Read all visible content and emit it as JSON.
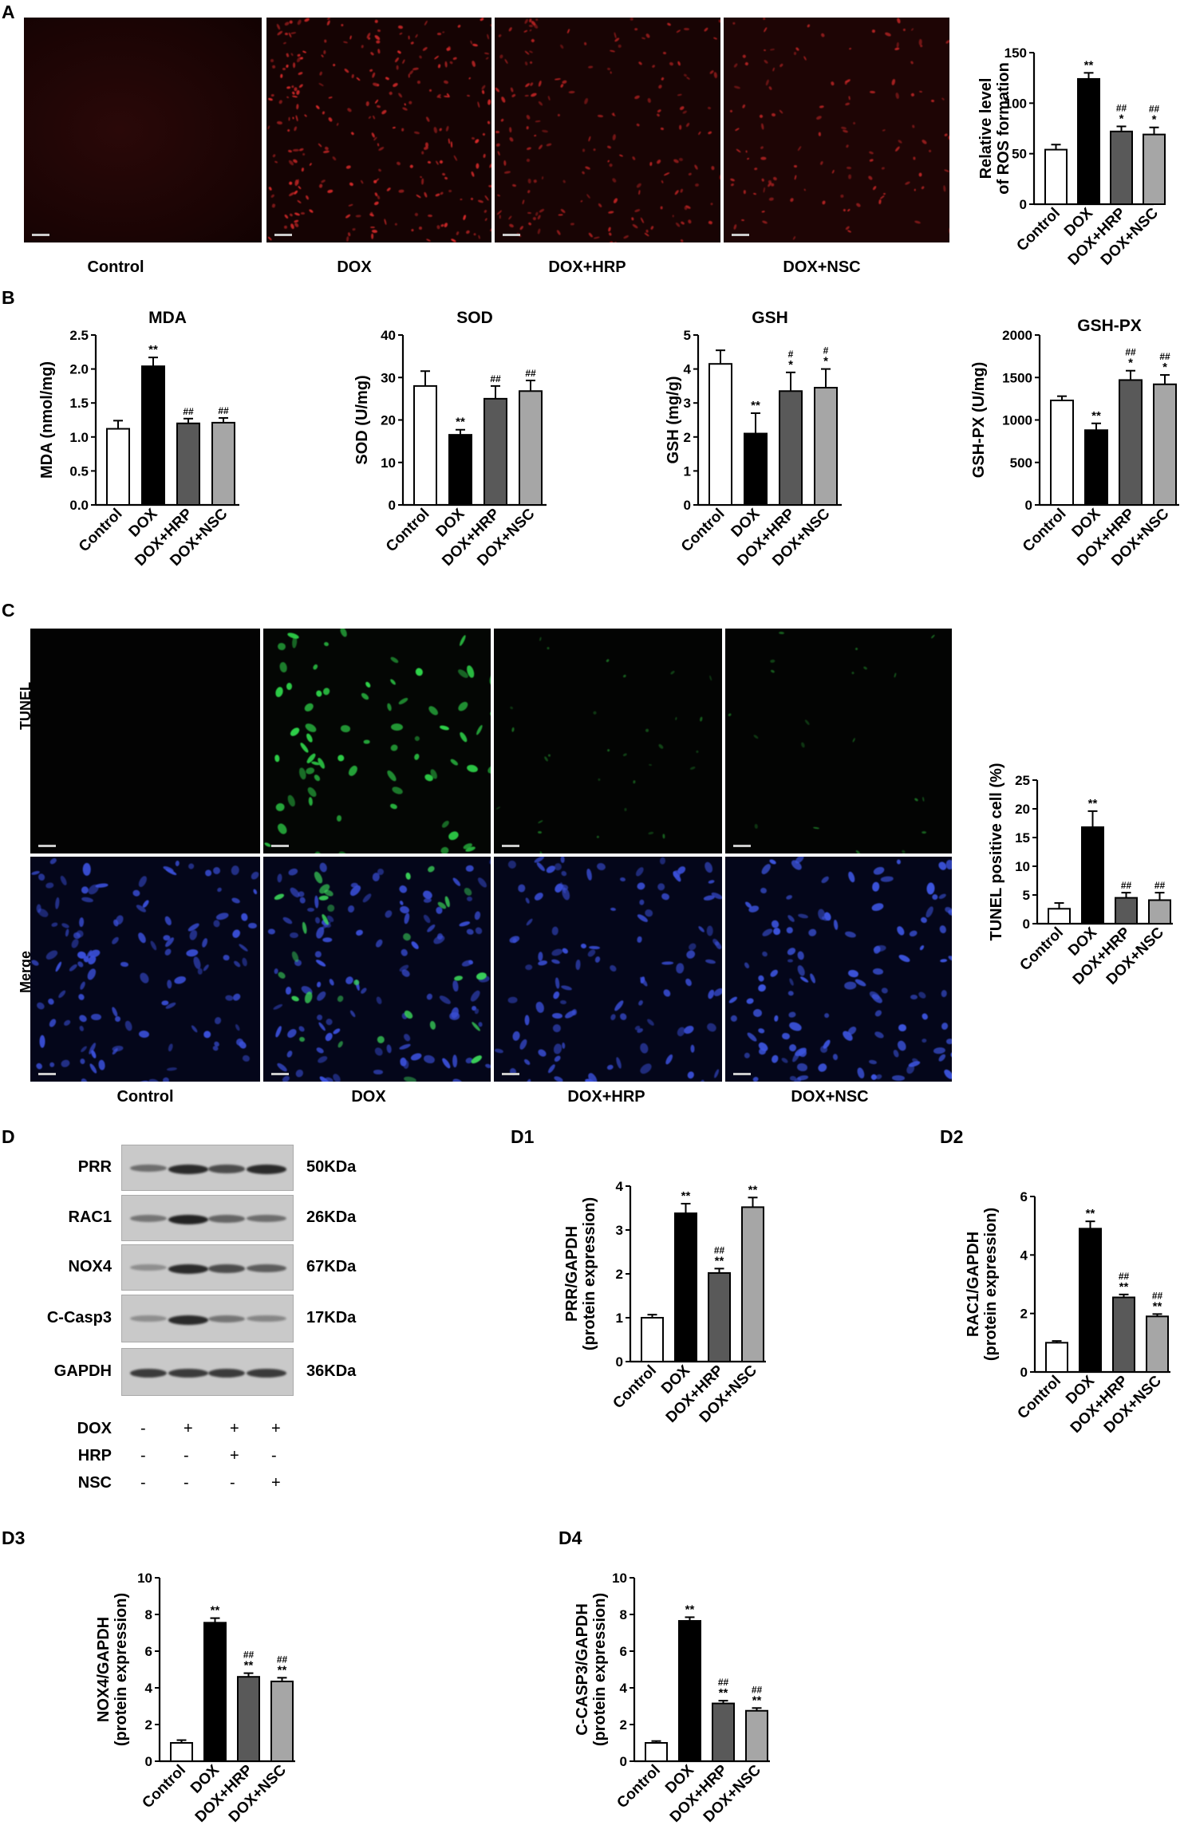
{
  "panels": {
    "A": {
      "label": "A",
      "images": [
        "Control",
        "DOX",
        "DOX+HRP",
        "DOX+NSC"
      ],
      "chart": {
        "ylabel": [
          "Relative level",
          "of ROS formation"
        ]
      }
    },
    "B": {
      "label": "B"
    },
    "C": {
      "label": "C",
      "rows": [
        "TUNEL",
        "Merge"
      ],
      "images": [
        "Control",
        "DOX",
        "DOX+HRP",
        "DOX+NSC"
      ],
      "chart": {
        "ylabel": "TUNEL positive cell (%)"
      }
    },
    "D": {
      "label": "D",
      "proteins": [
        {
          "name": "PRR",
          "size": "50KDa"
        },
        {
          "name": "RAC1",
          "size": "26KDa"
        },
        {
          "name": "NOX4",
          "size": "67KDa"
        },
        {
          "name": "C-Casp3",
          "size": "17KDa"
        },
        {
          "name": "GAPDH",
          "size": "36KDa"
        }
      ],
      "treatments": [
        {
          "name": "DOX",
          "signs": [
            "-",
            "+",
            "+",
            "+"
          ]
        },
        {
          "name": "HRP",
          "signs": [
            "-",
            "-",
            "+",
            "-"
          ]
        },
        {
          "name": "NSC",
          "signs": [
            "-",
            "-",
            "-",
            "+"
          ]
        }
      ]
    },
    "D1": {
      "label": "D1"
    },
    "D2": {
      "label": "D2"
    },
    "D3": {
      "label": "D3"
    },
    "D4": {
      "label": "D4"
    }
  },
  "colors": {
    "control": "#ffffff",
    "dox": "#000000",
    "hrp": "#595959",
    "nsc": "#a6a6a6"
  },
  "chart_data": [
    {
      "id": "A",
      "type": "bar",
      "categories": [
        "Control",
        "DOX",
        "DOX+HRP",
        "DOX+NSC"
      ],
      "values": [
        54,
        124,
        72,
        69
      ],
      "errors": [
        5,
        6,
        5,
        7
      ],
      "annotations": [
        "",
        "**",
        "*|##",
        "*|##"
      ],
      "ylabel": "Relative level of ROS formation",
      "ylim": [
        0,
        150
      ],
      "yticks": [
        0,
        50,
        100,
        150
      ],
      "title": ""
    },
    {
      "id": "MDA",
      "type": "bar",
      "categories": [
        "Control",
        "DOX",
        "DOX+HRP",
        "DOX+NSC"
      ],
      "values": [
        1.12,
        2.04,
        1.2,
        1.21
      ],
      "errors": [
        0.12,
        0.13,
        0.07,
        0.07
      ],
      "annotations": [
        "",
        "**",
        "##",
        "##"
      ],
      "title": "MDA",
      "ylabel": "MDA (nmol/mg)",
      "ylim": [
        0,
        2.5
      ],
      "yticks": [
        0.0,
        0.5,
        1.0,
        1.5,
        2.0,
        2.5
      ]
    },
    {
      "id": "SOD",
      "type": "bar",
      "categories": [
        "Control",
        "DOX",
        "DOX+HRP",
        "DOX+NSC"
      ],
      "values": [
        28,
        16.5,
        25,
        26.8
      ],
      "errors": [
        3.5,
        1.2,
        3.0,
        2.5
      ],
      "annotations": [
        "",
        "**",
        "##",
        "##"
      ],
      "title": "SOD",
      "ylabel": "SOD (U/mg)",
      "ylim": [
        0,
        40
      ],
      "yticks": [
        0,
        10,
        20,
        30,
        40
      ]
    },
    {
      "id": "GSH",
      "type": "bar",
      "categories": [
        "Control",
        "DOX",
        "DOX+HRP",
        "DOX+NSC"
      ],
      "values": [
        4.15,
        2.1,
        3.35,
        3.45
      ],
      "errors": [
        0.4,
        0.6,
        0.55,
        0.55
      ],
      "annotations": [
        "",
        "**",
        "*|#",
        "*|#"
      ],
      "title": "GSH",
      "ylabel": "GSH (mg/g)",
      "ylim": [
        0,
        5
      ],
      "yticks": [
        0,
        1,
        2,
        3,
        4,
        5
      ]
    },
    {
      "id": "GSH-PX",
      "type": "bar",
      "categories": [
        "Control",
        "DOX",
        "DOX+HRP",
        "DOX+NSC"
      ],
      "values": [
        1230,
        880,
        1470,
        1420
      ],
      "errors": [
        50,
        80,
        110,
        110
      ],
      "annotations": [
        "",
        "**",
        "*|##",
        "*|##"
      ],
      "title": "GSH-PX",
      "ylabel": "GSH-PX (U/mg)",
      "ylim": [
        0,
        2000
      ],
      "yticks": [
        0,
        500,
        1000,
        1500,
        2000
      ]
    },
    {
      "id": "C",
      "type": "bar",
      "categories": [
        "Control",
        "DOX",
        "DOX+HRP",
        "DOX+NSC"
      ],
      "values": [
        2.6,
        16.8,
        4.5,
        4.1
      ],
      "errors": [
        1.0,
        2.8,
        0.9,
        1.3
      ],
      "annotations": [
        "",
        "**",
        "##",
        "##"
      ],
      "ylabel": "TUNEL positive cell (%)",
      "ylim": [
        0,
        25
      ],
      "yticks": [
        0,
        5,
        10,
        15,
        20,
        25
      ],
      "title": ""
    },
    {
      "id": "D1",
      "type": "bar",
      "categories": [
        "Control",
        "DOX",
        "DOX+HRP",
        "DOX+NSC"
      ],
      "values": [
        1.0,
        3.38,
        2.02,
        3.52
      ],
      "errors": [
        0.07,
        0.22,
        0.1,
        0.22
      ],
      "annotations": [
        "",
        "**",
        "**|##",
        "**"
      ],
      "ylabel": "PRR/GAPDH (protein expression)",
      "ylim": [
        0,
        4
      ],
      "yticks": [
        0,
        1,
        2,
        3,
        4
      ],
      "title": ""
    },
    {
      "id": "D2",
      "type": "bar",
      "categories": [
        "Control",
        "DOX",
        "DOX+HRP",
        "DOX+NSC"
      ],
      "values": [
        1.0,
        4.9,
        2.55,
        1.9
      ],
      "errors": [
        0.06,
        0.25,
        0.1,
        0.08
      ],
      "annotations": [
        "",
        "**",
        "**|##",
        "**|##"
      ],
      "ylabel": "RAC1/GAPDH (protein expression)",
      "ylim": [
        0,
        6
      ],
      "yticks": [
        0,
        2,
        4,
        6
      ],
      "title": ""
    },
    {
      "id": "D3",
      "type": "bar",
      "categories": [
        "Control",
        "DOX",
        "DOX+HRP",
        "DOX+NSC"
      ],
      "values": [
        1.0,
        7.55,
        4.6,
        4.35
      ],
      "errors": [
        0.15,
        0.25,
        0.2,
        0.2
      ],
      "annotations": [
        "",
        "**",
        "**|##",
        "**|##"
      ],
      "ylabel": "NOX4/GAPDH (protein expression)",
      "ylim": [
        0,
        10
      ],
      "yticks": [
        0,
        2,
        4,
        6,
        8,
        10
      ],
      "title": ""
    },
    {
      "id": "D4",
      "type": "bar",
      "categories": [
        "Control",
        "DOX",
        "DOX+HRP",
        "DOX+NSC"
      ],
      "values": [
        1.0,
        7.65,
        3.15,
        2.75
      ],
      "errors": [
        0.1,
        0.2,
        0.15,
        0.15
      ],
      "annotations": [
        "",
        "**",
        "**|##",
        "**|##"
      ],
      "ylabel": "C-CASP3/GAPDH (protein expression)",
      "ylim": [
        0,
        10
      ],
      "yticks": [
        0,
        2,
        4,
        6,
        8,
        10
      ],
      "title": ""
    }
  ]
}
